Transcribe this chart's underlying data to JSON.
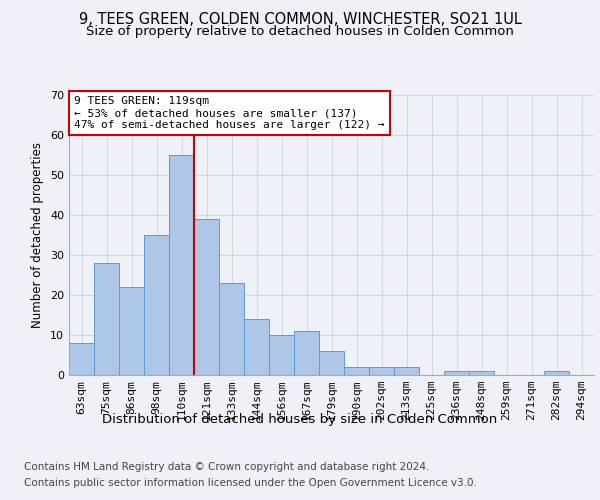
{
  "title": "9, TEES GREEN, COLDEN COMMON, WINCHESTER, SO21 1UL",
  "subtitle": "Size of property relative to detached houses in Colden Common",
  "xlabel": "Distribution of detached houses by size in Colden Common",
  "ylabel": "Number of detached properties",
  "categories": [
    "63sqm",
    "75sqm",
    "86sqm",
    "98sqm",
    "110sqm",
    "121sqm",
    "133sqm",
    "144sqm",
    "156sqm",
    "167sqm",
    "179sqm",
    "190sqm",
    "202sqm",
    "213sqm",
    "225sqm",
    "236sqm",
    "248sqm",
    "259sqm",
    "271sqm",
    "282sqm",
    "294sqm"
  ],
  "values": [
    8,
    28,
    22,
    35,
    55,
    39,
    23,
    14,
    10,
    11,
    6,
    2,
    2,
    2,
    0,
    1,
    1,
    0,
    0,
    1,
    0
  ],
  "bar_color": "#aec6e8",
  "bar_edge_color": "#5b9bd5",
  "bar_width": 1.0,
  "grid_color": "#d0d8e8",
  "background_color": "#eef2f8",
  "ylim": [
    0,
    70
  ],
  "yticks": [
    0,
    10,
    20,
    30,
    40,
    50,
    60,
    70
  ],
  "marker_label": "9 TEES GREEN: 119sqm",
  "annotation_line1": "← 53% of detached houses are smaller (137)",
  "annotation_line2": "47% of semi-detached houses are larger (122) →",
  "annotation_box_color": "#ffffff",
  "annotation_box_edge": "#cc0000",
  "marker_line_color": "#cc0000",
  "footnote1": "Contains HM Land Registry data © Crown copyright and database right 2024.",
  "footnote2": "Contains public sector information licensed under the Open Government Licence v3.0.",
  "title_fontsize": 10.5,
  "subtitle_fontsize": 9.5,
  "xlabel_fontsize": 9.5,
  "ylabel_fontsize": 8.5,
  "tick_fontsize": 8,
  "annotation_fontsize": 8,
  "footnote_fontsize": 7.5
}
